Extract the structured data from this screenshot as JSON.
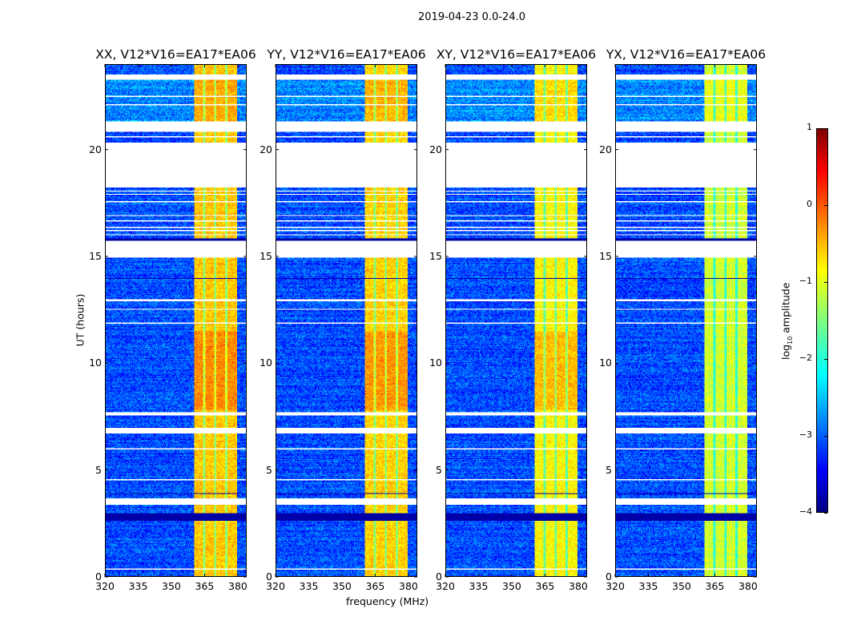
{
  "chart_data": {
    "type": "heatmap",
    "title": "2019-04-23 0.0-24.0",
    "xlabel": "frequency (MHz)",
    "ylabel": "UT (hours)",
    "xlim": [
      320,
      384
    ],
    "ylim": [
      0,
      24
    ],
    "x_ticks": [
      "320",
      "335",
      "350",
      "365",
      "380"
    ],
    "x_tick_values": [
      320,
      335,
      350,
      365,
      380
    ],
    "y_ticks": [
      "0",
      "5",
      "10",
      "15",
      "20"
    ],
    "y_tick_values": [
      0,
      5,
      10,
      15,
      20
    ],
    "colorbar": {
      "label_prefix": "log",
      "label_sub": "10",
      "label_suffix": " amplitude",
      "range": [
        -4,
        1
      ],
      "ticks": [
        "−4",
        "−3",
        "−2",
        "−1",
        "0",
        "1"
      ],
      "tick_values": [
        -4,
        -3,
        -2,
        -1,
        0,
        1
      ],
      "colormap": "jet"
    },
    "background_level": -3.0,
    "bright_band_mhz": [
      360.5,
      380
    ],
    "band_dips_mhz": [
      365,
      370,
      375
    ],
    "flagged_hours": [
      [
        23.3,
        23.53
      ],
      [
        22.48,
        22.55
      ],
      [
        22.08,
        22.13
      ],
      [
        20.86,
        21.35
      ],
      [
        20.62,
        20.67
      ],
      [
        18.27,
        20.34
      ],
      [
        18.07,
        18.11
      ],
      [
        17.92,
        17.96
      ],
      [
        17.54,
        17.58
      ],
      [
        17.43,
        17.47
      ],
      [
        17.13,
        17.17
      ],
      [
        16.9,
        16.94
      ],
      [
        16.64,
        16.68
      ],
      [
        16.34,
        16.38
      ],
      [
        16.19,
        16.23
      ],
      [
        16.0,
        16.04
      ],
      [
        14.97,
        15.76
      ],
      [
        12.9,
        13.0
      ],
      [
        12.48,
        12.53
      ],
      [
        11.84,
        11.89
      ],
      [
        11.58,
        11.62
      ],
      [
        9.08,
        9.12
      ],
      [
        8.73,
        8.77
      ],
      [
        7.55,
        7.7
      ],
      [
        6.72,
        6.94
      ],
      [
        5.95,
        5.99
      ],
      [
        4.52,
        4.56
      ],
      [
        3.35,
        3.64
      ],
      [
        2.18,
        2.22
      ],
      [
        1.58,
        1.62
      ],
      [
        0.68,
        0.72
      ],
      [
        0.32,
        0.36
      ]
    ],
    "low_hours": [
      [
        15.76,
        15.87
      ],
      [
        13.94,
        13.98
      ],
      [
        12.03,
        12.07
      ],
      [
        11.18,
        11.22
      ],
      [
        5.28,
        5.32
      ],
      [
        5.13,
        5.17
      ],
      [
        3.84,
        3.88
      ],
      [
        2.6,
        2.96
      ]
    ],
    "panels": [
      {
        "title": "XX, V12*V16=EA17*EA06",
        "band_level": -0.6
      },
      {
        "title": "YY, V12*V16=EA17*EA06",
        "band_level": -0.65
      },
      {
        "title": "XY, V12*V16=EA17*EA06",
        "band_level": -0.85
      },
      {
        "title": "YX, V12*V16=EA17*EA06",
        "band_level": -1.1
      }
    ]
  }
}
